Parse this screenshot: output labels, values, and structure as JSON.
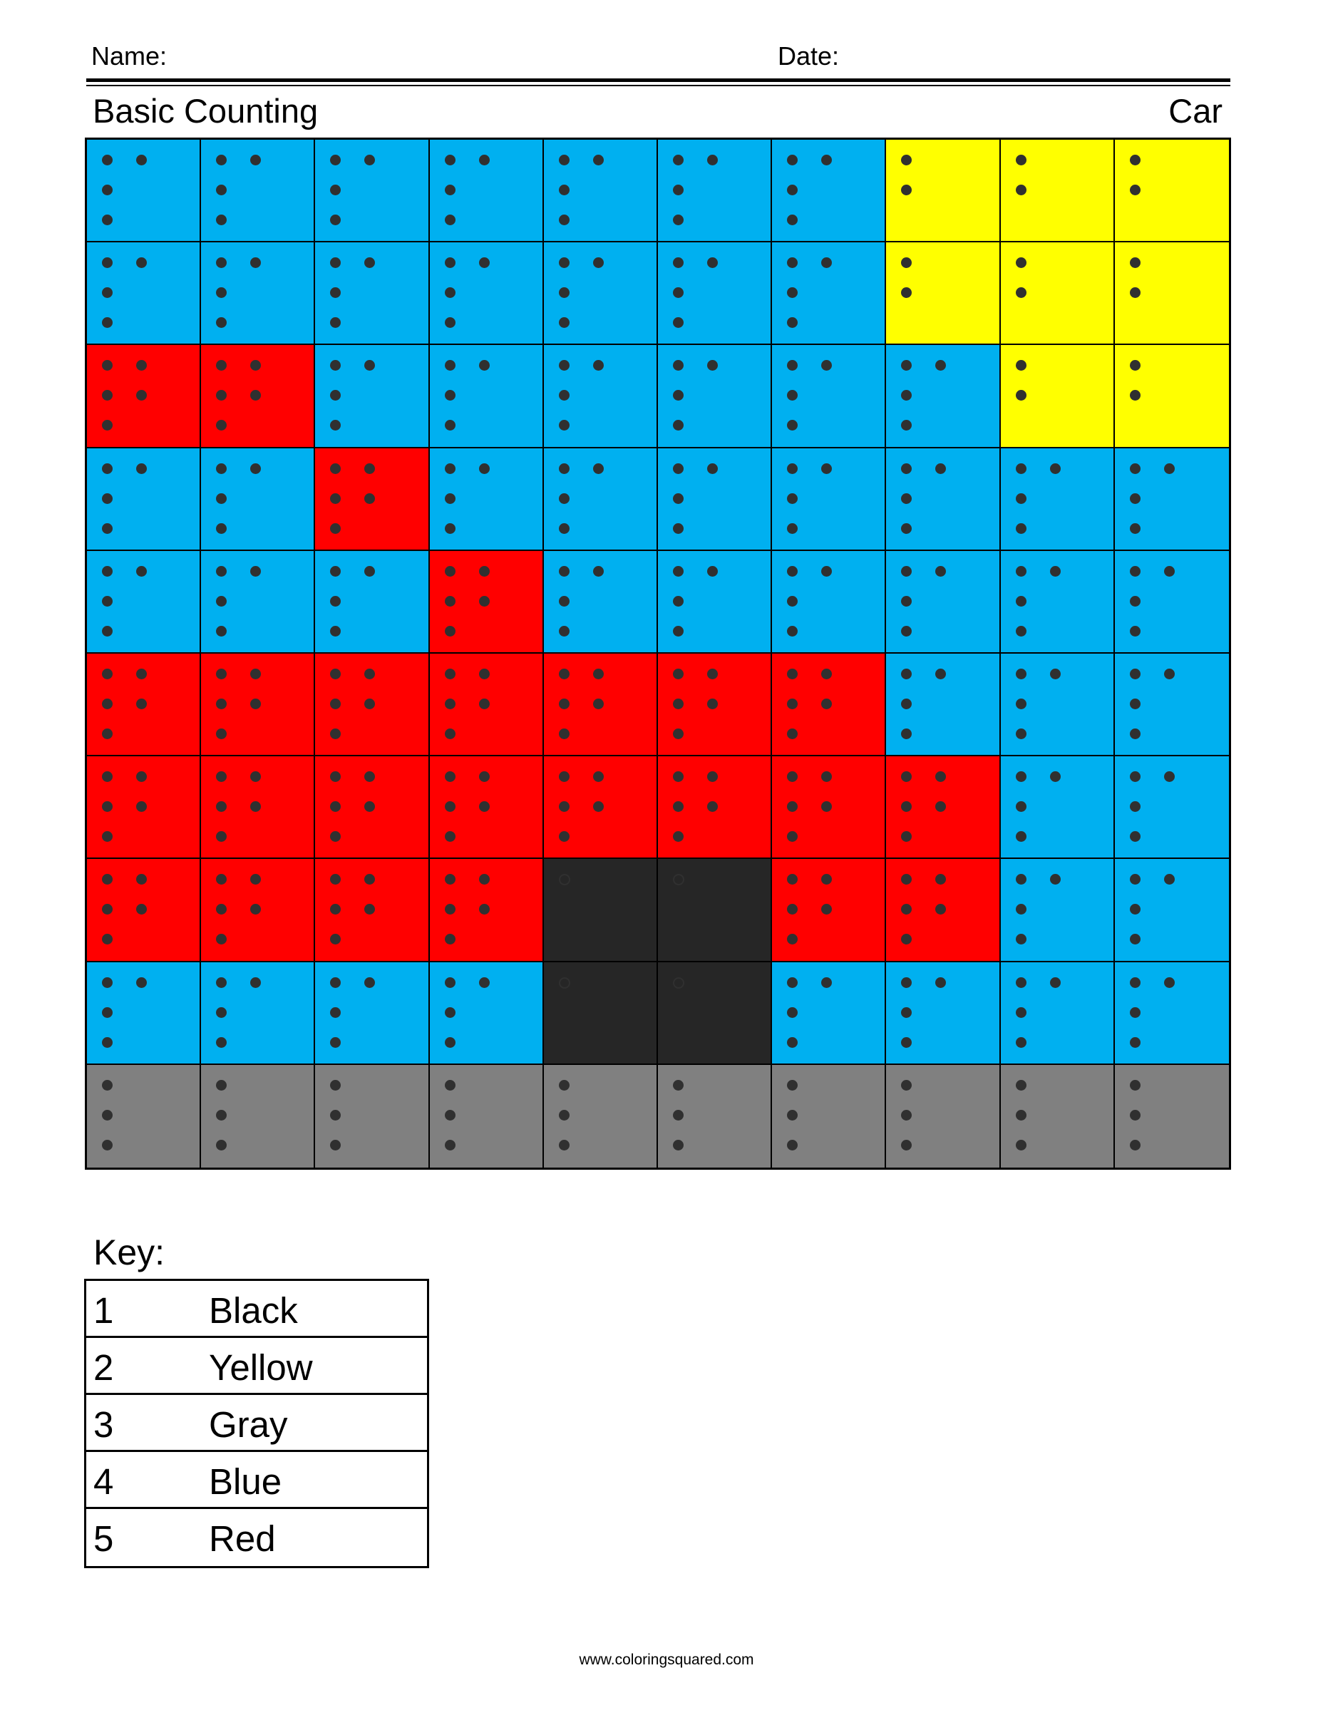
{
  "header": {
    "name_label": "Name:",
    "date_label": "Date:"
  },
  "title": {
    "left": "Basic Counting",
    "right": "Car"
  },
  "colors": {
    "1": "#262626",
    "2": "#ffff00",
    "3": "#808080",
    "4": "#00b0f0",
    "5": "#ff0000"
  },
  "grid": [
    [
      4,
      4,
      4,
      4,
      4,
      4,
      4,
      2,
      2,
      2
    ],
    [
      4,
      4,
      4,
      4,
      4,
      4,
      4,
      2,
      2,
      2
    ],
    [
      5,
      5,
      4,
      4,
      4,
      4,
      4,
      4,
      2,
      2
    ],
    [
      4,
      4,
      5,
      4,
      4,
      4,
      4,
      4,
      4,
      4
    ],
    [
      4,
      4,
      4,
      5,
      4,
      4,
      4,
      4,
      4,
      4
    ],
    [
      5,
      5,
      5,
      5,
      5,
      5,
      5,
      4,
      4,
      4
    ],
    [
      5,
      5,
      5,
      5,
      5,
      5,
      5,
      5,
      4,
      4
    ],
    [
      5,
      5,
      5,
      5,
      1,
      1,
      5,
      5,
      4,
      4
    ],
    [
      4,
      4,
      4,
      4,
      1,
      1,
      4,
      4,
      4,
      4
    ],
    [
      3,
      3,
      3,
      3,
      3,
      3,
      3,
      3,
      3,
      3
    ]
  ],
  "key": {
    "label": "Key:",
    "items": [
      {
        "number": "1",
        "color": "Black"
      },
      {
        "number": "2",
        "color": "Yellow"
      },
      {
        "number": "3",
        "color": "Gray"
      },
      {
        "number": "4",
        "color": "Blue"
      },
      {
        "number": "5",
        "color": "Red"
      }
    ]
  },
  "footer": "www.coloringsquared.com"
}
